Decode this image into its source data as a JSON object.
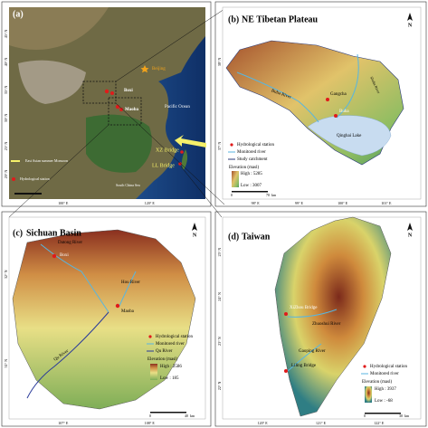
{
  "north": "N",
  "panels": [
    {
      "label": "(a)",
      "places": [
        "Beijing",
        "Pacific Ocean",
        "Boxi",
        "Maoba",
        "XZ Bridge",
        "LL Bridge",
        "South China Sea"
      ],
      "legend": [
        "East Asian summer Monsoon",
        "Hydrological station"
      ],
      "lat_ticks": [
        "45° N",
        "40° N",
        "35° N",
        "30° N",
        "25° N",
        "20° N"
      ],
      "lon_ticks": [
        "100° E",
        "120° E"
      ]
    },
    {
      "label": "(b)",
      "title": "NE Tibetan Plateau",
      "places": [
        "Gangcha",
        "Buha",
        "Buha River",
        "Qinghai Lake",
        "Shaliu River"
      ],
      "legend": [
        "Hydrological station",
        "Monitored river",
        "Study catchment",
        "Elevation (masl)",
        "High : 5285",
        "Low : 3007"
      ],
      "scale": [
        "0",
        "70",
        "km"
      ],
      "lat_ticks": [
        "38° N",
        "37° N"
      ],
      "lon_ticks": [
        "98° E",
        "99° E",
        "100° E",
        "101° E"
      ]
    },
    {
      "label": "(c)",
      "title": "Sichuan Basin",
      "places": [
        "Datong River",
        "Boxi",
        "Hou River",
        "Maoba",
        "Qu River"
      ],
      "legend": [
        "Hydrological station",
        "Monitored river",
        "Qu River",
        "Elevation (masl)",
        "High : 2586",
        "Low : 185"
      ],
      "scale": [
        "0",
        "40",
        "km"
      ],
      "lat_ticks": [
        "32° N",
        "31° N"
      ],
      "lon_ticks": [
        "107° E",
        "108° E"
      ]
    },
    {
      "label": "(d)",
      "title": "Taiwan",
      "places": [
        "XiZhou Bridge",
        "Zhuoshui River",
        "Gaoping River",
        "Liling Bridge"
      ],
      "legend": [
        "Hydrological station",
        "Monitored river",
        "Elevation (masl)",
        "High : 3937",
        "Low : -68"
      ],
      "scale": [
        "0",
        "30",
        "km"
      ],
      "lat_ticks": [
        "25° N",
        "24° N",
        "23° N",
        "22° N"
      ],
      "lon_ticks": [
        "120° E",
        "121° E",
        "122° E"
      ]
    }
  ]
}
